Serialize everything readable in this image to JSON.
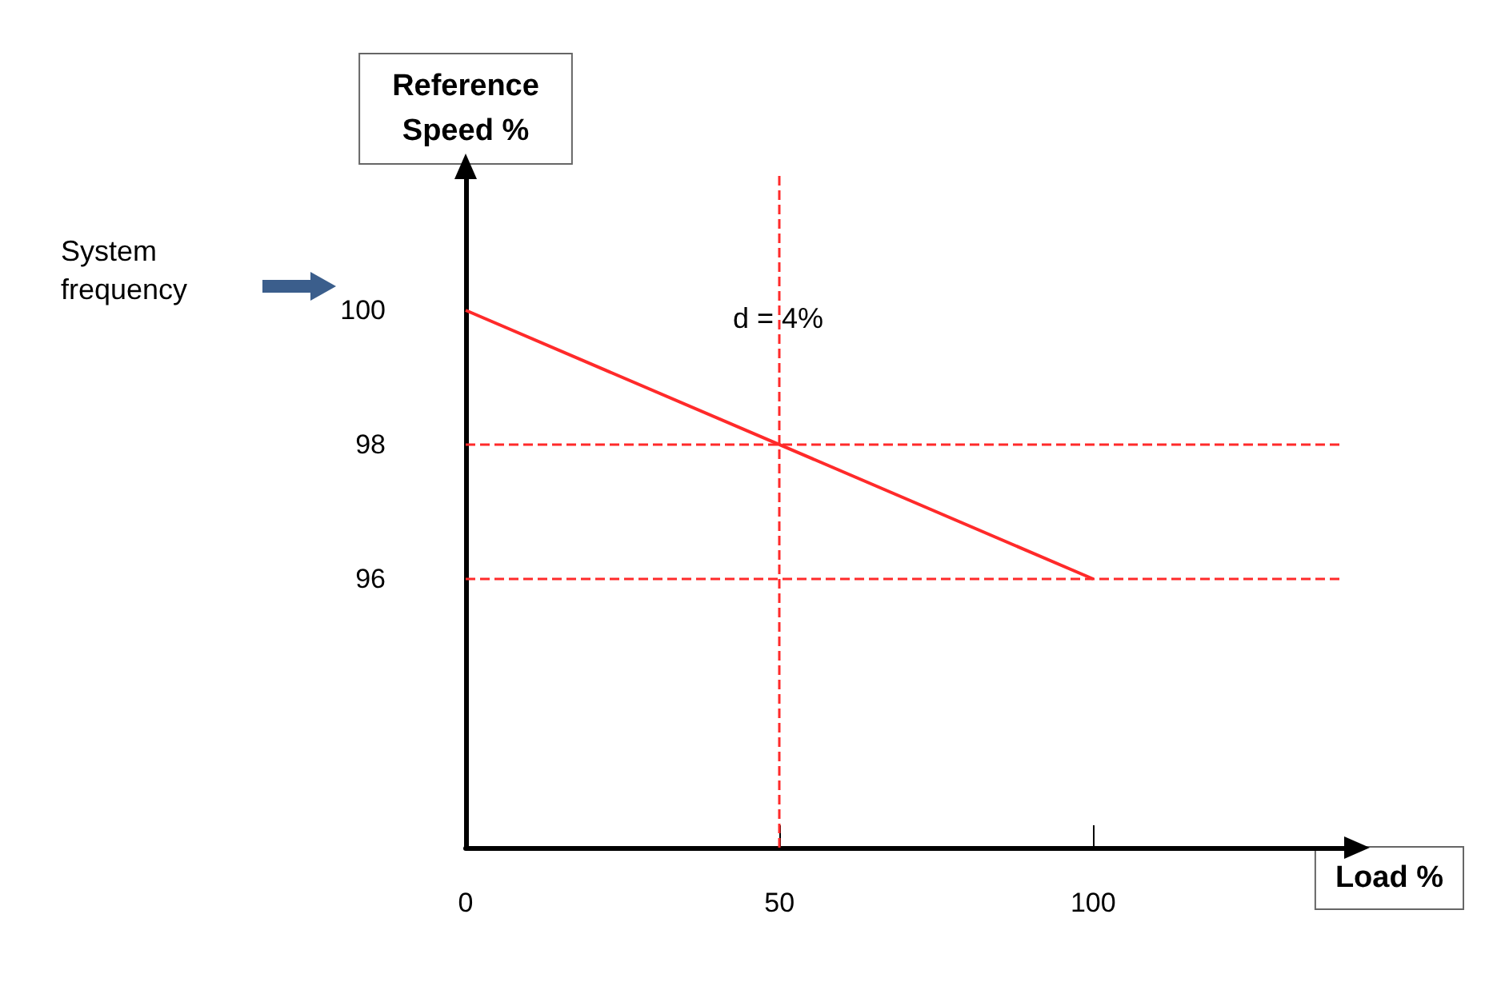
{
  "chart_data": {
    "type": "line",
    "xlabel": "Load %",
    "ylabel": "Reference Speed %",
    "x": [
      0,
      100
    ],
    "series": [
      {
        "color": "#ff2a2a",
        "values": [
          100,
          96
        ]
      }
    ],
    "xlim": [
      0,
      140
    ],
    "xticks": [
      0,
      50,
      100
    ],
    "ylim": [
      92,
      102
    ],
    "yticks": [
      96,
      98,
      100
    ],
    "grid": false,
    "marker": "none",
    "line_style": "solid",
    "ref_lines": [
      {
        "axis": "y",
        "value": 98,
        "label": null,
        "color": "#ff2a2a",
        "line_style": "dashed"
      },
      {
        "axis": "y",
        "value": 96,
        "label": null,
        "color": "#ff2a2a",
        "line_style": "dashed"
      },
      {
        "axis": "x",
        "value": 50,
        "label": null,
        "color": "#ff2a2a",
        "line_style": "dashed"
      }
    ],
    "annotations": [
      "System frequency",
      "d = 4%"
    ]
  }
}
